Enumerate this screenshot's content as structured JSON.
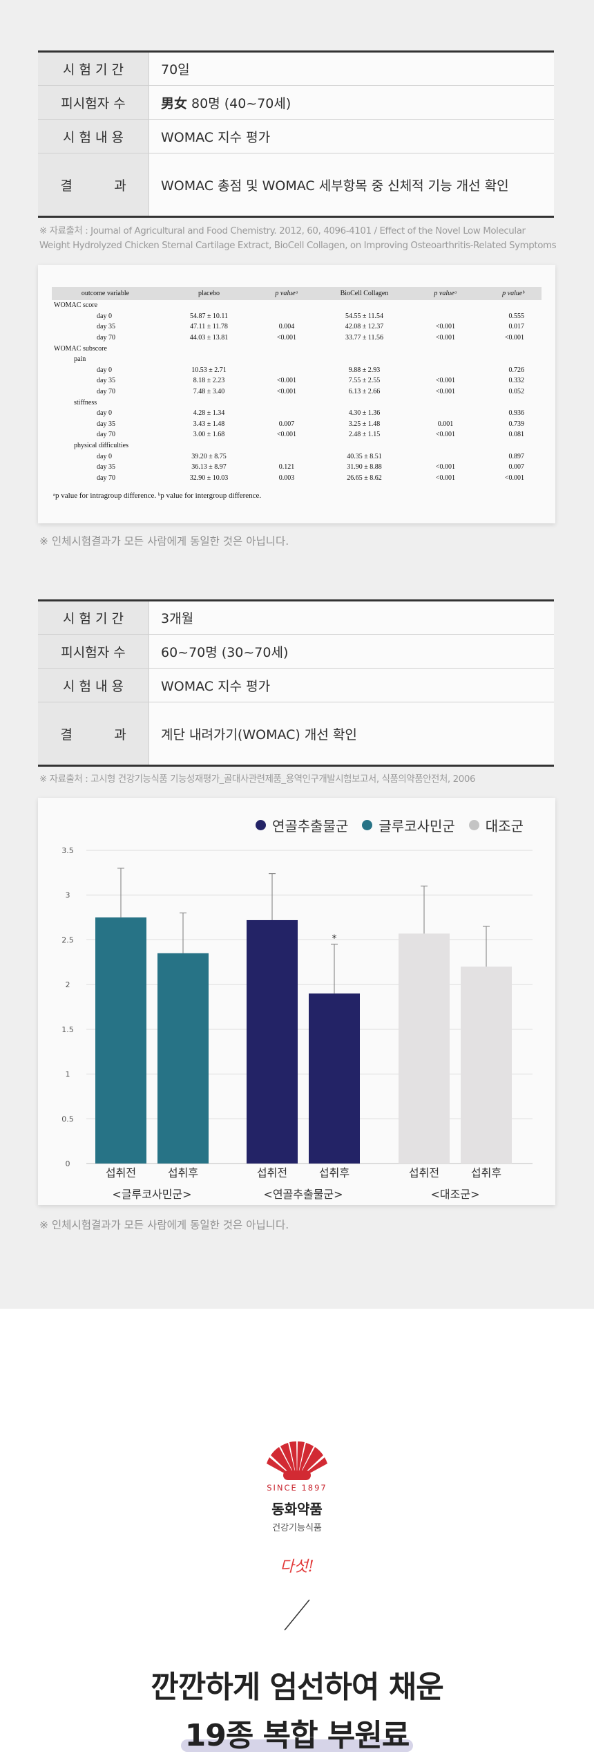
{
  "trial1": {
    "rows": [
      {
        "label": "시 험 기 간",
        "value": "70일"
      },
      {
        "label": "피시험자 수",
        "value_bold": "男女",
        "value": "80명 (40~70세)"
      },
      {
        "label": "시 험 내 용",
        "value": "WOMAC 지수 평가"
      },
      {
        "label": "결          과",
        "value": "WOMAC 총점 및 WOMAC 세부항목 중 신체적 기능 개선 확인"
      }
    ],
    "source_line1": "※ 자료출처 : Journal of Agricultural and Food Chemistry. 2012, 60, 4096-4101 / Effect of the Novel Low Molecular",
    "source_line2": "Weight Hydrolyzed Chicken Sternal Cartilage Extract, BioCell Collagen, on Improving Osteoarthritis-Related Symptoms",
    "note": "※ 인체시험결과가 모든 사람에게 동일한 것은 아닙니다."
  },
  "stat_table": {
    "headers": [
      "outcome variable",
      "placebo",
      "p valueᵃ",
      "BioCell Collagen",
      "p valueᵃ",
      "p valueᵇ"
    ],
    "rows": [
      {
        "var": "WOMAC score",
        "lvl": 0,
        "placebo": "",
        "p1": "",
        "bc": "",
        "p2": "",
        "p3": ""
      },
      {
        "var": "day 0",
        "lvl": 2,
        "placebo": "54.87 ± 10.11",
        "p1": "",
        "bc": "54.55 ± 11.54",
        "p2": "",
        "p3": "0.555"
      },
      {
        "var": "day 35",
        "lvl": 2,
        "placebo": "47.11 ± 11.78",
        "p1": "0.004",
        "bc": "42.08 ± 12.37",
        "p2": "<0.001",
        "p3": "0.017"
      },
      {
        "var": "day 70",
        "lvl": 2,
        "placebo": "44.03 ± 13.81",
        "p1": "<0.001",
        "bc": "33.77 ± 11.56",
        "p2": "<0.001",
        "p3": "<0.001"
      },
      {
        "var": "WOMAC subscore",
        "lvl": 0,
        "placebo": "",
        "p1": "",
        "bc": "",
        "p2": "",
        "p3": ""
      },
      {
        "var": "pain",
        "lvl": 1,
        "placebo": "",
        "p1": "",
        "bc": "",
        "p2": "",
        "p3": ""
      },
      {
        "var": "day 0",
        "lvl": 2,
        "placebo": "10.53 ± 2.71",
        "p1": "",
        "bc": "9.88 ± 2.93",
        "p2": "",
        "p3": "0.726"
      },
      {
        "var": "day 35",
        "lvl": 2,
        "placebo": "8.18 ± 2.23",
        "p1": "<0.001",
        "bc": "7.55 ± 2.55",
        "p2": "<0.001",
        "p3": "0.332"
      },
      {
        "var": "day 70",
        "lvl": 2,
        "placebo": "7.48 ± 3.40",
        "p1": "<0.001",
        "bc": "6.13 ± 2.66",
        "p2": "<0.001",
        "p3": "0.052"
      },
      {
        "var": "stiffness",
        "lvl": 1,
        "placebo": "",
        "p1": "",
        "bc": "",
        "p2": "",
        "p3": ""
      },
      {
        "var": "day 0",
        "lvl": 2,
        "placebo": "4.28 ± 1.34",
        "p1": "",
        "bc": "4.30 ± 1.36",
        "p2": "",
        "p3": "0.936"
      },
      {
        "var": "day 35",
        "lvl": 2,
        "placebo": "3.43 ± 1.48",
        "p1": "0.007",
        "bc": "3.25 ± 1.48",
        "p2": "0.001",
        "p3": "0.739"
      },
      {
        "var": "day 70",
        "lvl": 2,
        "placebo": "3.00 ± 1.68",
        "p1": "<0.001",
        "bc": "2.48 ± 1.15",
        "p2": "<0.001",
        "p3": "0.081"
      },
      {
        "var": "physical difficulties",
        "lvl": 1,
        "placebo": "",
        "p1": "",
        "bc": "",
        "p2": "",
        "p3": ""
      },
      {
        "var": "day 0",
        "lvl": 2,
        "placebo": "39.20 ± 8.75",
        "p1": "",
        "bc": "40.35 ± 8.51",
        "p2": "",
        "p3": "0.897"
      },
      {
        "var": "day 35",
        "lvl": 2,
        "placebo": "36.13 ± 8.97",
        "p1": "0.121",
        "bc": "31.90 ± 8.88",
        "p2": "<0.001",
        "p3": "0.007"
      },
      {
        "var": "day 70",
        "lvl": 2,
        "placebo": "32.90 ± 10.03",
        "p1": "0.003",
        "bc": "26.65 ± 8.62",
        "p2": "<0.001",
        "p3": "<0.001"
      }
    ],
    "footnote": "ᵃp value for intragroup difference. ᵇp value for intergroup difference."
  },
  "trial2": {
    "rows": [
      {
        "label": "시 험 기 간",
        "value": "3개월"
      },
      {
        "label": "피시험자 수",
        "value": "60~70명 (30~70세)"
      },
      {
        "label": "시 험 내 용",
        "value": "WOMAC 지수 평가"
      },
      {
        "label": "결          과",
        "value": "계단 내려가기(WOMAC) 개선 확인"
      }
    ],
    "source": "※ 자료출처 : 고시형 건강기능식품 기능성재평가_골대사관련제품_용역인구개발시험보고서, 식품의약품안전처, 2006",
    "note": "※ 인체시험결과가 모든 사람에게 동일한 것은 아닙니다."
  },
  "chart_data": {
    "type": "bar",
    "legend": [
      {
        "name": "연골추출물군",
        "color": "#232366"
      },
      {
        "name": "글루코사민군",
        "color": "#277386"
      },
      {
        "name": "대조군",
        "color": "#c4c4c4"
      }
    ],
    "legend_position": "top-right",
    "ylim": [
      0,
      3.5
    ],
    "yticks": [
      "0",
      "0.5",
      "1",
      "1.5",
      "2",
      "2.5",
      "3",
      "3.5"
    ],
    "grid": true,
    "groups": [
      {
        "name": "<글루코사민군>",
        "color": "#277386",
        "bars": [
          {
            "label": "섭취전",
            "value": 2.75,
            "err": 0.55
          },
          {
            "label": "섭취후",
            "value": 2.35,
            "err": 0.45
          }
        ]
      },
      {
        "name": "<연골추출물군>",
        "color": "#232366",
        "bars": [
          {
            "label": "섭취전",
            "value": 2.72,
            "err": 0.52
          },
          {
            "label": "섭취후",
            "value": 1.9,
            "err": 0.55,
            "mark": "*"
          }
        ]
      },
      {
        "name": "<대조군>",
        "color": "#e3e1e2",
        "bars": [
          {
            "label": "섭취전",
            "value": 2.57,
            "err": 0.53
          },
          {
            "label": "섭취후",
            "value": 2.2,
            "err": 0.45
          }
        ]
      }
    ]
  },
  "brand": {
    "since": "SINCE 1897",
    "name": "동화약품",
    "sub": "건강기능식품",
    "five": "다섯!",
    "headline1": "깐깐하게 엄선하여 채운",
    "headline2": "19종 복합 부원료"
  }
}
